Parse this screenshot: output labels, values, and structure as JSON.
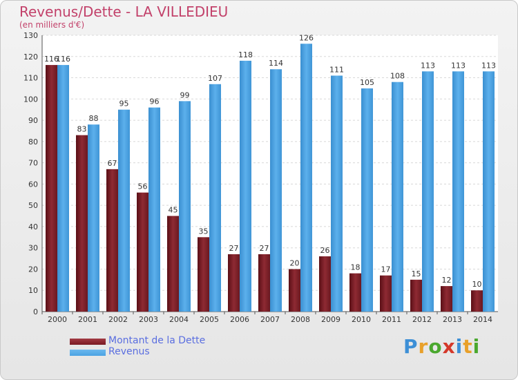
{
  "header": {
    "title": "Revenus/Dette - LA VILLEDIEU",
    "subtitle": "(en milliers d'€)"
  },
  "colors": {
    "debt": "#7a1a22",
    "revenue": "#4aa3e3",
    "title": "#c2416a",
    "legend_text": "#5a6ee0"
  },
  "legend": {
    "items": [
      {
        "label": "Montant de la Dette",
        "color": "#7a1a22"
      },
      {
        "label": "Revenus",
        "color": "#4aa3e3"
      }
    ]
  },
  "logo": {
    "letters": [
      "P",
      "r",
      "o",
      "x",
      "i",
      "t",
      "i"
    ],
    "colors": [
      "#3d8fd6",
      "#e8a02a",
      "#4aa82e",
      "#d4382a",
      "#3d8fd6",
      "#e8a02a",
      "#4aa82e"
    ]
  },
  "chart_data": {
    "type": "bar",
    "title": "Revenus/Dette - LA VILLEDIEU",
    "ylabel": "(en milliers d'€)",
    "categories": [
      "2000",
      "2001",
      "2002",
      "2003",
      "2004",
      "2005",
      "2006",
      "2007",
      "2008",
      "2009",
      "2010",
      "2011",
      "2012",
      "2013",
      "2014"
    ],
    "series": [
      {
        "name": "Montant de la Dette",
        "values": [
          116,
          83,
          67,
          56,
          45,
          35,
          27,
          27,
          20,
          26,
          18,
          17,
          15,
          12,
          10
        ]
      },
      {
        "name": "Revenus",
        "values": [
          116,
          88,
          95,
          96,
          99,
          107,
          118,
          114,
          126,
          111,
          105,
          108,
          113,
          113,
          113
        ]
      }
    ],
    "ylim": [
      0,
      130
    ],
    "yticks": [
      0,
      10,
      20,
      30,
      40,
      50,
      60,
      70,
      80,
      90,
      100,
      110,
      120,
      130
    ],
    "grid": true,
    "legend_position": "bottom-left"
  }
}
